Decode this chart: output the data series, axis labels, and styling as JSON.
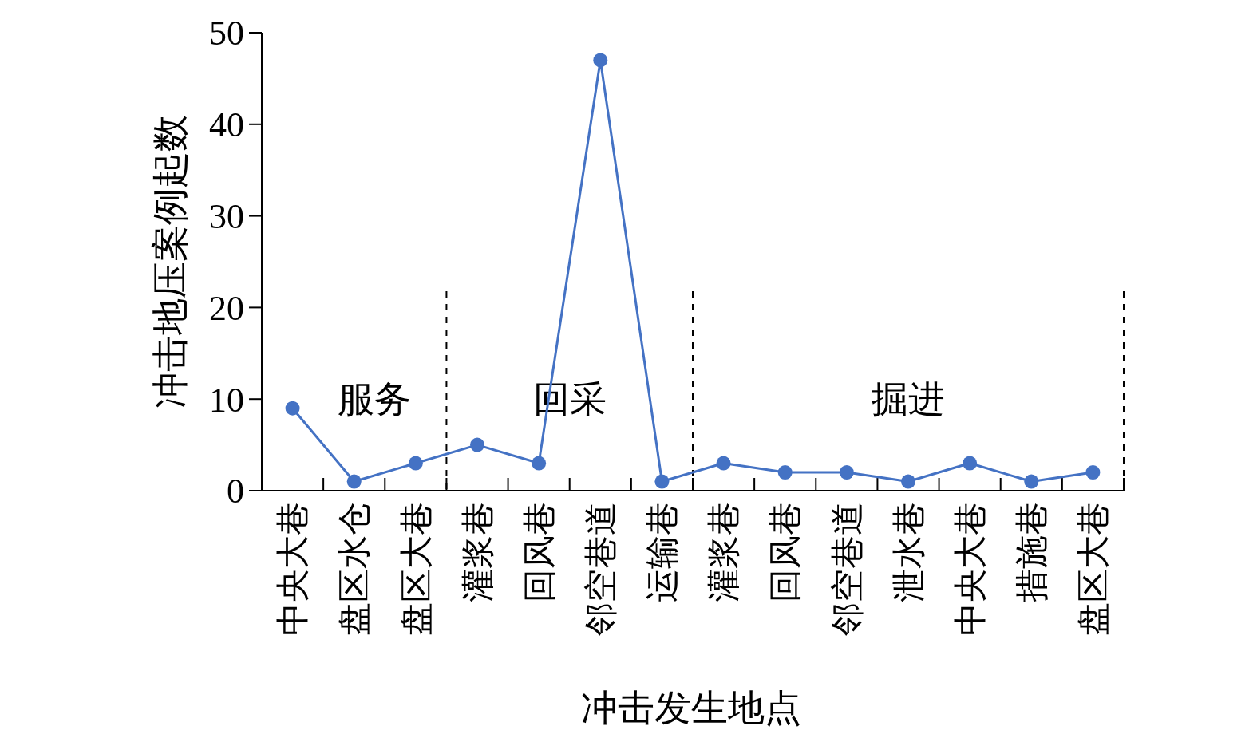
{
  "chart_data": {
    "type": "line",
    "xlabel": "冲击发生地点",
    "ylabel": "冲击地压案例起数",
    "categories": [
      "中央大巷",
      "盘区水仓",
      "盘区大巷",
      "灌浆巷",
      "回风巷",
      "邻空巷道",
      "运输巷",
      "灌浆巷",
      "回风巷",
      "邻空巷道",
      "泄水巷",
      "中央大巷",
      "措施巷",
      "盘区大巷"
    ],
    "series": [
      {
        "color": "#4472c4",
        "values": [
          9,
          1,
          3,
          5,
          3,
          47,
          1,
          3,
          2,
          2,
          1,
          3,
          1,
          2
        ]
      }
    ],
    "ylim": [
      0,
      50
    ],
    "yticks": [
      0,
      10,
      20,
      30,
      40,
      50
    ],
    "marker": "circle",
    "grid": false,
    "annotations": [
      "服务",
      "回采",
      "掘进"
    ]
  }
}
